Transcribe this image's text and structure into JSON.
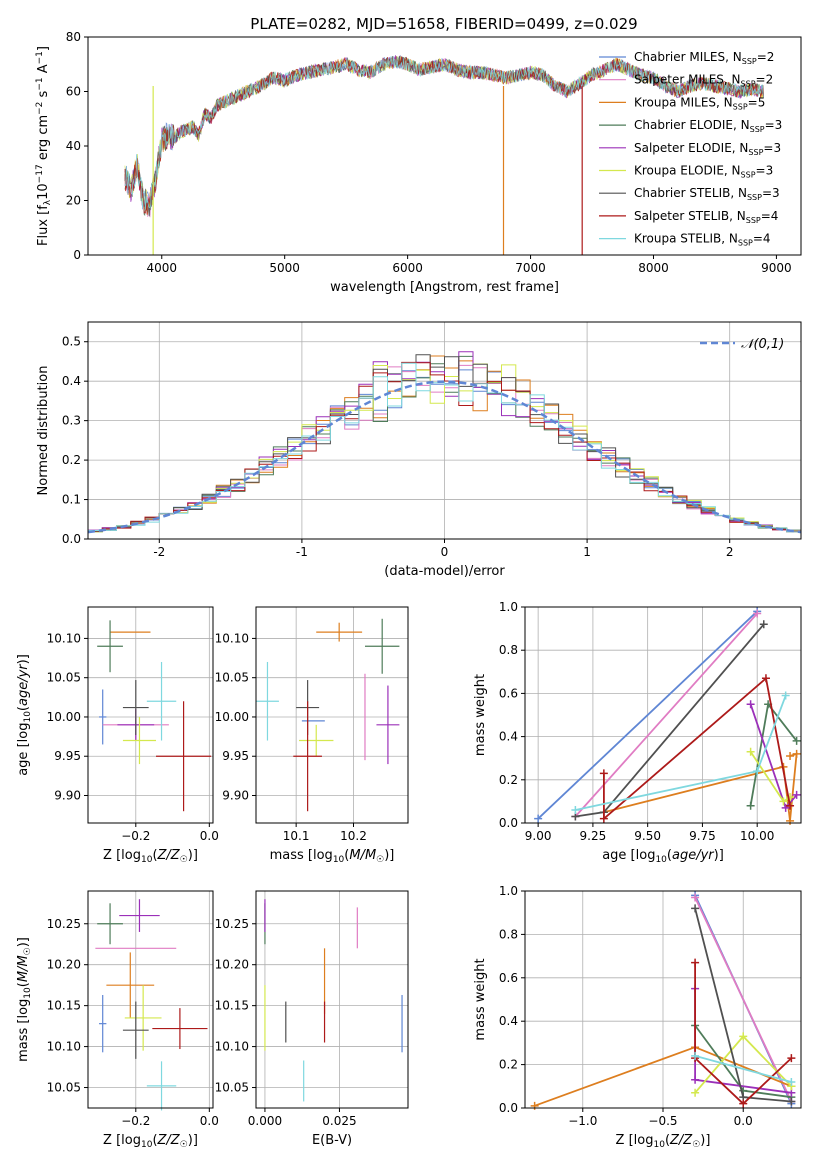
{
  "page": {
    "title": "PLATE=0282, MJD=51658, FIBERID=0499, z=0.029"
  },
  "colors": {
    "Chabrier MILES": "#5f86d4",
    "Salpeter MILES": "#e07cc3",
    "Kroupa MILES": "#dd7e1f",
    "Chabrier ELODIE": "#4f7c5a",
    "Salpeter ELODIE": "#9b30b9",
    "Kroupa ELODIE": "#d4e84e",
    "Chabrier STELIB": "#505050",
    "Salpeter STELIB": "#ad1a1a",
    "Kroupa STELIB": "#7fd8df",
    "normal": "#5f86d4"
  },
  "chart_data": [
    {
      "id": "spectrum",
      "type": "line",
      "title": "PLATE=0282, MJD=51658, FIBERID=0499, z=0.029",
      "xlabel": "wavelength [Angstrom, rest frame]",
      "ylabel": "Flux [f_λ 10^-17 erg cm^-2 s^-1 A^-1]",
      "xlim": [
        3400,
        9200
      ],
      "ylim": [
        0,
        80
      ],
      "xticks": [
        4000,
        5000,
        6000,
        7000,
        8000,
        9000
      ],
      "yticks": [
        0,
        20,
        40,
        60,
        80
      ],
      "grid": false,
      "legend": "top-right",
      "series_legend": [
        {
          "name": "Chabrier MILES",
          "nssp": 2
        },
        {
          "name": "Salpeter MILES",
          "nssp": 2
        },
        {
          "name": "Kroupa MILES",
          "nssp": 5
        },
        {
          "name": "Chabrier ELODIE",
          "nssp": 3
        },
        {
          "name": "Salpeter ELODIE",
          "nssp": 3
        },
        {
          "name": "Kroupa ELODIE",
          "nssp": 3
        },
        {
          "name": "Chabrier STELIB",
          "nssp": 3
        },
        {
          "name": "Salpeter STELIB",
          "nssp": 4
        },
        {
          "name": "Kroupa STELIB",
          "nssp": 4
        }
      ],
      "x": [
        3700,
        3750,
        3800,
        3850,
        3900,
        3950,
        4000,
        4050,
        4100,
        4150,
        4200,
        4250,
        4300,
        4350,
        4400,
        4450,
        4500,
        4600,
        4700,
        4800,
        4900,
        5000,
        5100,
        5200,
        5300,
        5400,
        5500,
        5600,
        5700,
        5800,
        5900,
        6000,
        6100,
        6200,
        6300,
        6400,
        6500,
        6600,
        6700,
        6800,
        6900,
        7000,
        7100,
        7200,
        7300,
        7400,
        7500,
        7600,
        7700,
        7800,
        7900,
        8000,
        8100,
        8200,
        8300,
        8400,
        8500,
        8600,
        8700,
        8800,
        8900
      ],
      "y": [
        29,
        24,
        33,
        20,
        18,
        28,
        42,
        44,
        43,
        45,
        46,
        47,
        44,
        52,
        50,
        55,
        56,
        58,
        60,
        62,
        65,
        64,
        66,
        67,
        68,
        69,
        70,
        68,
        67,
        70,
        71,
        70,
        68,
        69,
        70,
        68,
        67,
        67,
        66,
        65,
        66,
        67,
        66,
        62,
        60,
        63,
        66,
        68,
        70,
        68,
        66,
        65,
        62,
        60,
        62,
        63,
        62,
        61,
        60,
        61,
        60
      ],
      "dips": [
        {
          "x": 3930,
          "y": 0,
          "series": "Kroupa ELODIE"
        },
        {
          "x": 6780,
          "y": 0,
          "series": "Kroupa MILES"
        },
        {
          "x": 7420,
          "y": 0,
          "series": "Salpeter STELIB"
        }
      ]
    },
    {
      "id": "residuals",
      "type": "histogram",
      "xlabel": "(data-model)/error",
      "ylabel": "Normed distribution",
      "xlim": [
        -2.5,
        2.5
      ],
      "ylim": [
        0,
        0.55
      ],
      "xticks": [
        -2,
        -1,
        0,
        1,
        2
      ],
      "yticks": [
        0.0,
        0.1,
        0.2,
        0.3,
        0.4,
        0.5
      ],
      "grid": true,
      "legend": "top-right",
      "reference": {
        "name": "𝒩(0,1)",
        "mean": 0,
        "sigma": 1
      },
      "bin_width": 0.1,
      "note": "nine overlapping step histograms, approximately standard normal"
    },
    {
      "id": "age_vs_Z",
      "type": "errorbar",
      "xlabel": "Z [log10(Z/Z☉)]",
      "ylabel": "age [log10(age/yr)]",
      "xlim": [
        -0.33,
        0.01
      ],
      "ylim": [
        9.865,
        10.14
      ],
      "xticks": [
        -0.2,
        0.0
      ],
      "xticklabels": [
        "−0.2",
        "0.0"
      ],
      "yticks": [
        9.9,
        9.95,
        10.0,
        10.05,
        10.1
      ],
      "grid": true,
      "points": [
        {
          "series": "Chabrier MILES",
          "x": -0.29,
          "xerr": 0.01,
          "y": 10.0,
          "yerr": 0.035
        },
        {
          "series": "Salpeter MILES",
          "x": -0.2,
          "xerr": 0.09,
          "y": 9.99,
          "yerr": 0.02
        },
        {
          "series": "Kroupa MILES",
          "x": -0.215,
          "xerr": 0.055,
          "y": 10.108,
          "yerr": 0.0
        },
        {
          "series": "Chabrier ELODIE",
          "x": -0.27,
          "xerr": 0.035,
          "y": 10.09,
          "yerr": 0.033
        },
        {
          "series": "Salpeter ELODIE",
          "x": -0.2,
          "xerr": 0.05,
          "y": 9.99,
          "yerr": 0.02
        },
        {
          "series": "Kroupa ELODIE",
          "x": -0.19,
          "xerr": 0.045,
          "y": 9.97,
          "yerr": 0.03
        },
        {
          "series": "Chabrier STELIB",
          "x": -0.2,
          "xerr": 0.035,
          "y": 10.012,
          "yerr": 0.035
        },
        {
          "series": "Salpeter STELIB",
          "x": -0.07,
          "xerr": 0.075,
          "y": 9.95,
          "yerr": 0.07
        },
        {
          "series": "Kroupa STELIB",
          "x": -0.13,
          "xerr": 0.04,
          "y": 10.02,
          "yerr": 0.05
        }
      ]
    },
    {
      "id": "age_vs_mass",
      "type": "errorbar",
      "xlabel": "mass [log10(M/M☉)]",
      "ylabel": "",
      "xlim": [
        10.03,
        10.295
      ],
      "ylim": [
        9.865,
        10.14
      ],
      "xticks": [
        10.1,
        10.2
      ],
      "yticks": [
        9.9,
        9.95,
        10.0,
        10.05,
        10.1
      ],
      "grid": true,
      "points": [
        {
          "series": "Chabrier MILES",
          "x": 10.13,
          "xerr": 0.02,
          "y": 9.995,
          "yerr": 0.0
        },
        {
          "series": "Salpeter MILES",
          "x": 10.22,
          "xerr": 0.0,
          "y": 10.0,
          "yerr": 0.055
        },
        {
          "series": "Kroupa MILES",
          "x": 10.175,
          "xerr": 0.04,
          "y": 10.108,
          "yerr": 0.012
        },
        {
          "series": "Chabrier ELODIE",
          "x": 10.25,
          "xerr": 0.03,
          "y": 10.09,
          "yerr": 0.035
        },
        {
          "series": "Salpeter ELODIE",
          "x": 10.26,
          "xerr": 0.02,
          "y": 9.99,
          "yerr": 0.05
        },
        {
          "series": "Kroupa ELODIE",
          "x": 10.135,
          "xerr": 0.03,
          "y": 9.97,
          "yerr": 0.02
        },
        {
          "series": "Chabrier STELIB",
          "x": 10.12,
          "xerr": 0.02,
          "y": 10.012,
          "yerr": 0.035
        },
        {
          "series": "Salpeter STELIB",
          "x": 10.12,
          "xerr": 0.025,
          "y": 9.95,
          "yerr": 0.07
        },
        {
          "series": "Kroupa STELIB",
          "x": 10.05,
          "xerr": 0.02,
          "y": 10.02,
          "yerr": 0.05
        }
      ]
    },
    {
      "id": "weight_vs_age",
      "type": "line",
      "xlabel": "age [log10(age/yr)]",
      "ylabel": "mass weight",
      "xlim": [
        8.94,
        10.2
      ],
      "ylim": [
        0,
        1.0
      ],
      "xticks": [
        9.0,
        9.25,
        9.5,
        9.75,
        10.0
      ],
      "xticklabels": [
        "9.00",
        "9.25",
        "9.50",
        "9.75",
        "10.00"
      ],
      "yticks": [
        0.0,
        0.2,
        0.4,
        0.6,
        0.8,
        1.0
      ],
      "grid": true,
      "series": [
        {
          "name": "Chabrier MILES",
          "x": [
            9.0,
            10.0
          ],
          "y": [
            0.02,
            0.98
          ]
        },
        {
          "name": "Salpeter MILES",
          "x": [
            9.17,
            10.0
          ],
          "y": [
            0.03,
            0.97
          ]
        },
        {
          "name": "Kroupa MILES",
          "x": [
            9.3,
            10.12,
            10.15,
            10.18,
            10.15
          ],
          "y": [
            0.05,
            0.26,
            0.01,
            0.32,
            0.31
          ]
        },
        {
          "name": "Chabrier ELODIE",
          "x": [
            9.97,
            10.05,
            10.18
          ],
          "y": [
            0.08,
            0.55,
            0.38
          ]
        },
        {
          "name": "Salpeter ELODIE",
          "x": [
            9.97,
            10.13,
            10.18
          ],
          "y": [
            0.55,
            0.07,
            0.13
          ]
        },
        {
          "name": "Kroupa ELODIE",
          "x": [
            9.97,
            10.12,
            10.15
          ],
          "y": [
            0.33,
            0.1,
            0.12
          ]
        },
        {
          "name": "Chabrier STELIB",
          "x": [
            9.17,
            9.3,
            10.03
          ],
          "y": [
            0.03,
            0.05,
            0.92
          ]
        },
        {
          "name": "Salpeter STELIB",
          "x": [
            9.3,
            9.3,
            10.04,
            10.15
          ],
          "y": [
            0.23,
            0.02,
            0.67,
            0.08
          ]
        },
        {
          "name": "Kroupa STELIB",
          "x": [
            9.17,
            10.0,
            10.13
          ],
          "y": [
            0.06,
            0.24,
            0.59
          ]
        }
      ]
    },
    {
      "id": "mass_vs_Z",
      "type": "errorbar",
      "xlabel": "Z [log10(Z/Z☉)]",
      "ylabel": "mass [log10(M/M☉)]",
      "xlim": [
        -0.33,
        0.01
      ],
      "ylim": [
        10.025,
        10.29
      ],
      "xticks": [
        -0.2,
        0.0
      ],
      "xticklabels": [
        "−0.2",
        "0.0"
      ],
      "yticks": [
        10.05,
        10.1,
        10.15,
        10.2,
        10.25
      ],
      "grid": true,
      "points": [
        {
          "series": "Chabrier MILES",
          "x": -0.29,
          "xerr": 0.01,
          "y": 10.128,
          "yerr": 0.035
        },
        {
          "series": "Salpeter MILES",
          "x": -0.2,
          "xerr": 0.11,
          "y": 10.22,
          "yerr": 0.0
        },
        {
          "series": "Kroupa MILES",
          "x": -0.215,
          "xerr": 0.065,
          "y": 10.175,
          "yerr": 0.04
        },
        {
          "series": "Chabrier ELODIE",
          "x": -0.27,
          "xerr": 0.035,
          "y": 10.25,
          "yerr": 0.025
        },
        {
          "series": "Salpeter ELODIE",
          "x": -0.19,
          "xerr": 0.055,
          "y": 10.26,
          "yerr": 0.02
        },
        {
          "series": "Kroupa ELODIE",
          "x": -0.18,
          "xerr": 0.05,
          "y": 10.135,
          "yerr": 0.04
        },
        {
          "series": "Chabrier STELIB",
          "x": -0.2,
          "xerr": 0.035,
          "y": 10.12,
          "yerr": 0.035
        },
        {
          "series": "Salpeter STELIB",
          "x": -0.08,
          "xerr": 0.075,
          "y": 10.122,
          "yerr": 0.025
        },
        {
          "series": "Kroupa STELIB",
          "x": -0.13,
          "xerr": 0.04,
          "y": 10.052,
          "yerr": 0.03
        }
      ]
    },
    {
      "id": "mass_vs_ebv",
      "type": "errorbar",
      "xlabel": "E(B-V)",
      "ylabel": "",
      "xlim": [
        -0.003,
        0.048
      ],
      "ylim": [
        10.025,
        10.29
      ],
      "xticks": [
        0.0,
        0.025
      ],
      "xticklabels": [
        "0.000",
        "0.025"
      ],
      "yticks": [
        10.05,
        10.1,
        10.15,
        10.2,
        10.25
      ],
      "grid": true,
      "points": [
        {
          "series": "Chabrier MILES",
          "x": 0.046,
          "xerr": 0.0,
          "y": 10.128,
          "yerr": 0.035
        },
        {
          "series": "Salpeter MILES",
          "x": 0.031,
          "xerr": 0.0,
          "y": 10.245,
          "yerr": 0.025
        },
        {
          "series": "Kroupa MILES",
          "x": 0.02,
          "xerr": 0.0,
          "y": 10.18,
          "yerr": 0.04
        },
        {
          "series": "Chabrier ELODIE",
          "x": 0.0,
          "xerr": 0.0,
          "y": 10.25,
          "yerr": 0.025
        },
        {
          "series": "Salpeter ELODIE",
          "x": 0.0,
          "xerr": 0.0,
          "y": 10.26,
          "yerr": 0.02
        },
        {
          "series": "Kroupa ELODIE",
          "x": 0.0,
          "xerr": 0.0,
          "y": 10.135,
          "yerr": 0.04
        },
        {
          "series": "Chabrier STELIB",
          "x": 0.007,
          "xerr": 0.0,
          "y": 10.13,
          "yerr": 0.025
        },
        {
          "series": "Salpeter STELIB",
          "x": 0.02,
          "xerr": 0.0,
          "y": 10.13,
          "yerr": 0.025
        },
        {
          "series": "Kroupa STELIB",
          "x": 0.013,
          "xerr": 0.0,
          "y": 10.058,
          "yerr": 0.025
        }
      ]
    },
    {
      "id": "weight_vs_Z",
      "type": "line",
      "xlabel": "Z [log10(Z/Z☉)]",
      "ylabel": "mass weight",
      "xlim": [
        -1.36,
        0.36
      ],
      "ylim": [
        0,
        1.0
      ],
      "xticks": [
        -1.0,
        -0.5,
        0.0
      ],
      "xticklabels": [
        "−1.0",
        "−0.5",
        "0.0"
      ],
      "yticks": [
        0.0,
        0.2,
        0.4,
        0.6,
        0.8,
        1.0
      ],
      "grid": true,
      "series": [
        {
          "name": "Chabrier MILES",
          "x": [
            -0.3,
            0.3
          ],
          "y": [
            0.98,
            0.02
          ]
        },
        {
          "name": "Salpeter MILES",
          "x": [
            -0.3,
            0.3
          ],
          "y": [
            0.97,
            0.03
          ]
        },
        {
          "name": "Kroupa MILES",
          "x": [
            -1.3,
            -0.3,
            0.3
          ],
          "y": [
            0.01,
            0.28,
            0.1
          ]
        },
        {
          "name": "Chabrier ELODIE",
          "x": [
            -0.3,
            0.0,
            0.3
          ],
          "y": [
            0.38,
            0.08,
            0.05
          ]
        },
        {
          "name": "Salpeter ELODIE",
          "x": [
            -0.3,
            -0.3,
            0.3
          ],
          "y": [
            0.55,
            0.13,
            0.07
          ]
        },
        {
          "name": "Kroupa ELODIE",
          "x": [
            -0.3,
            0.0,
            0.3
          ],
          "y": [
            0.07,
            0.33,
            0.1
          ]
        },
        {
          "name": "Chabrier STELIB",
          "x": [
            -0.3,
            0.0,
            0.3
          ],
          "y": [
            0.92,
            0.05,
            0.03
          ]
        },
        {
          "name": "Salpeter STELIB",
          "x": [
            -0.3,
            -0.3,
            0.0,
            0.3
          ],
          "y": [
            0.67,
            0.23,
            0.02,
            0.23
          ]
        },
        {
          "name": "Kroupa STELIB",
          "x": [
            -0.3,
            0.3
          ],
          "y": [
            0.24,
            0.12
          ]
        }
      ]
    }
  ]
}
